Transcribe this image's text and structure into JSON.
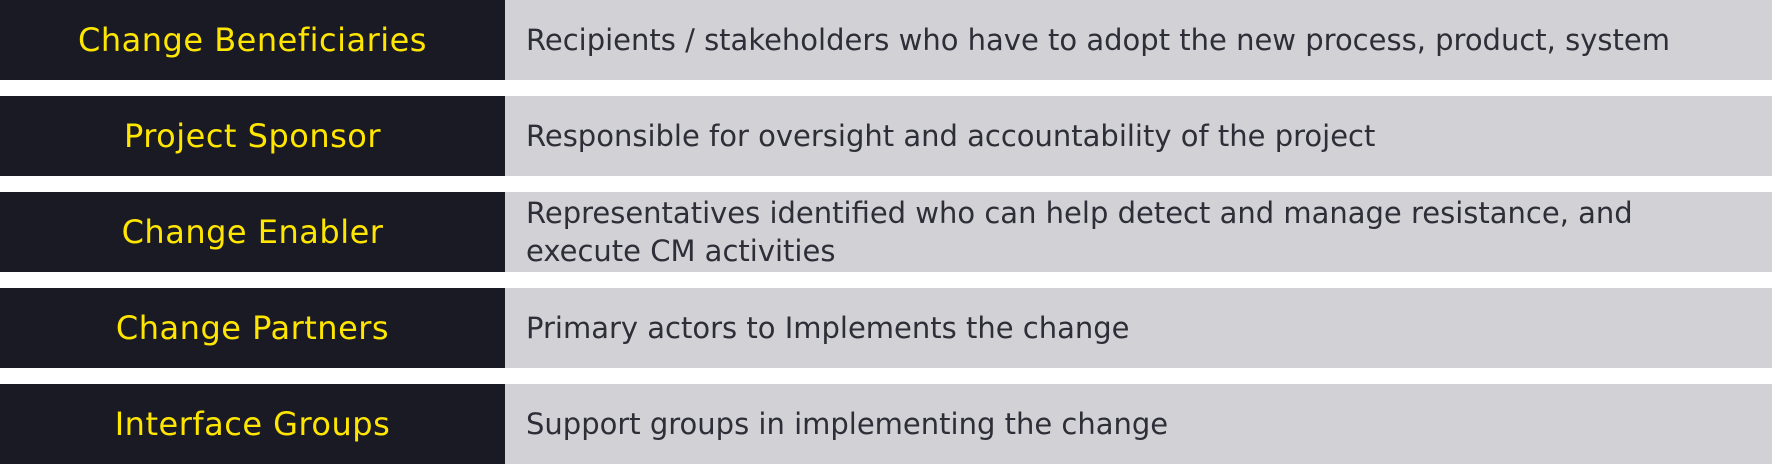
{
  "roles": [
    {
      "label": "Change Beneficiaries",
      "description": "Recipients / stakeholders who have to adopt the new process, product, system"
    },
    {
      "label": "Project Sponsor",
      "description": "Responsible for oversight and accountability of the project"
    },
    {
      "label": "Change Enabler",
      "description": "Representatives identified who can help detect and manage resistance, and execute CM activities"
    },
    {
      "label": "Change Partners",
      "description": "Primary actors to Implements the change"
    },
    {
      "label": "Interface Groups",
      "description": "Support groups in implementing the change"
    }
  ],
  "colors": {
    "label_background": "#1a1a24",
    "label_text": "#ffe600",
    "description_background": "#d1d1d6",
    "description_text": "#2e2e38"
  }
}
